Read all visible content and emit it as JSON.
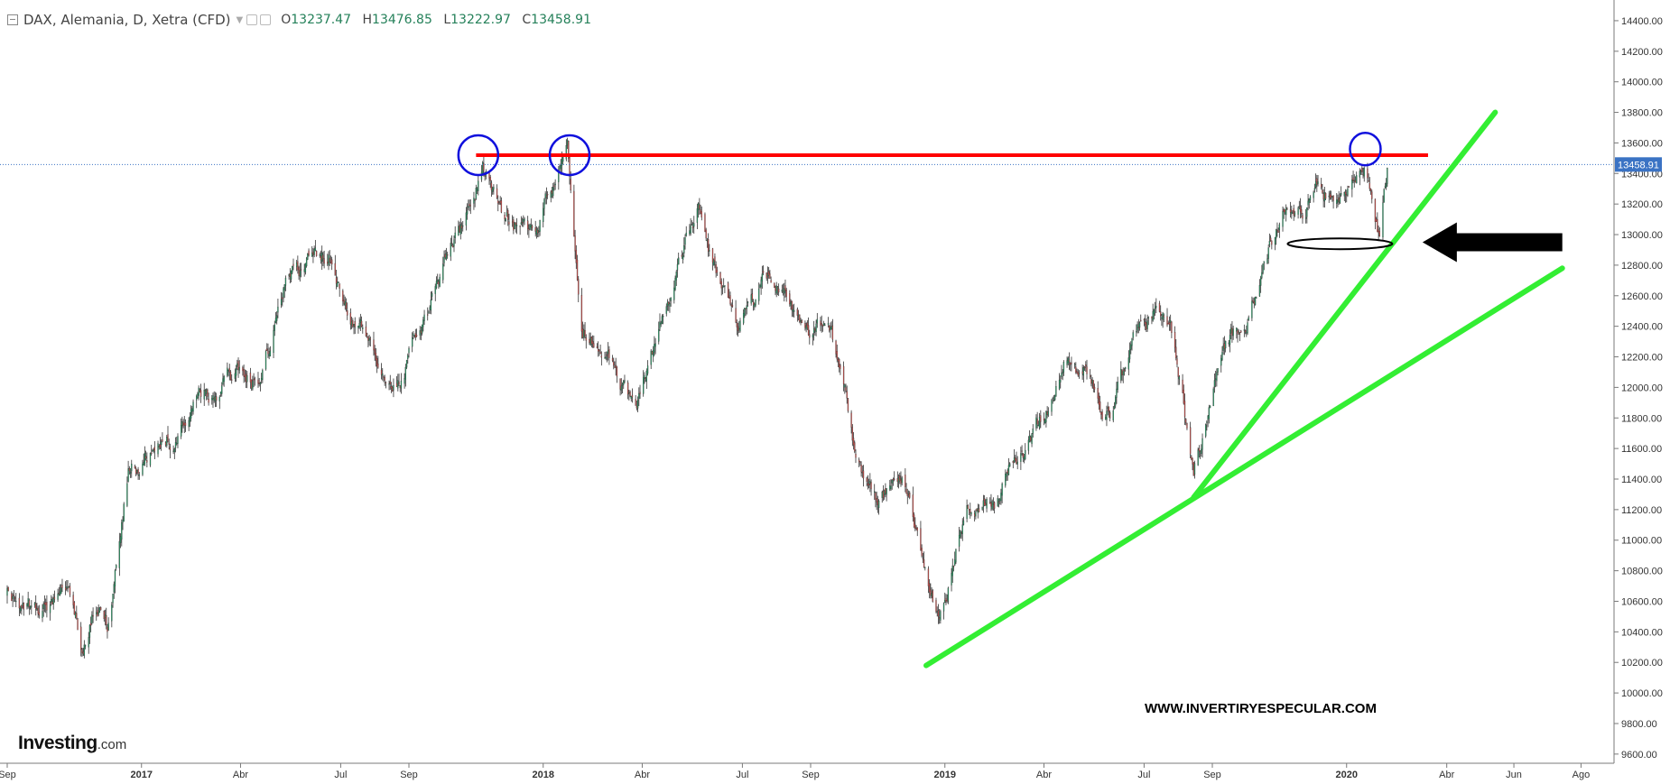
{
  "header": {
    "symbol": "DAX, Alemania, D, Xetra (CFD)",
    "open_label": "O",
    "open_value": "13237.47",
    "high_label": "H",
    "high_value": "13476.85",
    "low_label": "L",
    "low_value": "13222.97",
    "close_label": "C",
    "close_value": "13458.91"
  },
  "logo": {
    "name": "Investing",
    "suffix": ".com"
  },
  "watermark": "WWW.INVERTIRYESPECULAR.COM",
  "colors": {
    "up": "#26a269",
    "down": "#d9534f",
    "resistance": "#ff0000",
    "trend": "#33ee33",
    "circle": "#1010dd",
    "arrow": "#000000",
    "price_tag": "#3b73c4"
  },
  "chart_data": {
    "type": "candlestick",
    "title": "DAX, Alemania, D, Xetra (CFD)",
    "ylim": [
      9540,
      14500
    ],
    "y_ticks": [
      9600,
      9800,
      10000,
      10200,
      10400,
      10600,
      10800,
      11000,
      11200,
      11400,
      11600,
      11800,
      12000,
      12200,
      12400,
      12600,
      12800,
      13000,
      13200,
      13400,
      13600,
      13800,
      14000,
      14200,
      14400
    ],
    "y_tick_labels": [
      "9600.00",
      "9800.00",
      "10000.00",
      "10200.00",
      "10400.00",
      "10600.00",
      "10800.00",
      "11000.00",
      "11200.00",
      "11400.00",
      "11600.00",
      "11800.00",
      "12000.00",
      "12200.00",
      "12400.00",
      "12600.00",
      "12800.00",
      "13000.00",
      "13200.00",
      "13400.00",
      "13600.00",
      "13800.00",
      "14000.00",
      "14200.00",
      "14400.00"
    ],
    "xlim": [
      "2016-09-01",
      "2020-08-31"
    ],
    "x_ticks": [
      {
        "date": "2016-09-01",
        "label": "Sep",
        "bold": false
      },
      {
        "date": "2017-01-01",
        "label": "2017",
        "bold": true
      },
      {
        "date": "2017-04-01",
        "label": "Abr",
        "bold": false
      },
      {
        "date": "2017-07-01",
        "label": "Jul",
        "bold": false
      },
      {
        "date": "2017-09-01",
        "label": "Sep",
        "bold": false
      },
      {
        "date": "2018-01-01",
        "label": "2018",
        "bold": true
      },
      {
        "date": "2018-04-01",
        "label": "Abr",
        "bold": false
      },
      {
        "date": "2018-07-01",
        "label": "Jul",
        "bold": false
      },
      {
        "date": "2018-09-01",
        "label": "Sep",
        "bold": false
      },
      {
        "date": "2019-01-01",
        "label": "2019",
        "bold": true
      },
      {
        "date": "2019-04-01",
        "label": "Abr",
        "bold": false
      },
      {
        "date": "2019-07-01",
        "label": "Jul",
        "bold": false
      },
      {
        "date": "2019-09-01",
        "label": "Sep",
        "bold": false
      },
      {
        "date": "2020-01-01",
        "label": "2020",
        "bold": true
      },
      {
        "date": "2020-04-01",
        "label": "Abr",
        "bold": false
      },
      {
        "date": "2020-06-01",
        "label": "Jun",
        "bold": false
      },
      {
        "date": "2020-08-01",
        "label": "Ago",
        "bold": false
      }
    ],
    "price_path": [
      [
        "2016-09-01",
        10650
      ],
      [
        "2016-10-01",
        10500
      ],
      [
        "2016-10-25",
        10750
      ],
      [
        "2016-11-09",
        10250
      ],
      [
        "2016-11-20",
        10600
      ],
      [
        "2016-12-01",
        10450
      ],
      [
        "2016-12-20",
        11450
      ],
      [
        "2017-01-10",
        11600
      ],
      [
        "2017-02-01",
        11700
      ],
      [
        "2017-02-20",
        11850
      ],
      [
        "2017-03-20",
        12050
      ],
      [
        "2017-04-18",
        12050
      ],
      [
        "2017-05-10",
        12650
      ],
      [
        "2017-06-20",
        12850
      ],
      [
        "2017-07-10",
        12500
      ],
      [
        "2017-07-25",
        12300
      ],
      [
        "2017-08-25",
        12100
      ],
      [
        "2017-09-25",
        12600
      ],
      [
        "2017-10-20",
        13050
      ],
      [
        "2017-11-07",
        13500
      ],
      [
        "2017-11-25",
        13100
      ],
      [
        "2017-12-10",
        13050
      ],
      [
        "2017-12-25",
        13000
      ],
      [
        "2018-01-23",
        13550
      ],
      [
        "2018-02-05",
        12400
      ],
      [
        "2018-03-01",
        12250
      ],
      [
        "2018-03-26",
        11800
      ],
      [
        "2018-04-20",
        12500
      ],
      [
        "2018-05-22",
        13150
      ],
      [
        "2018-06-25",
        12300
      ],
      [
        "2018-07-20",
        12600
      ],
      [
        "2018-08-05",
        12700
      ],
      [
        "2018-08-25",
        12350
      ],
      [
        "2018-09-20",
        12400
      ],
      [
        "2018-10-10",
        11600
      ],
      [
        "2018-10-30",
        11300
      ],
      [
        "2018-11-25",
        11400
      ],
      [
        "2018-12-27",
        10450
      ],
      [
        "2019-01-20",
        11200
      ],
      [
        "2019-02-15",
        11300
      ],
      [
        "2019-03-20",
        11600
      ],
      [
        "2019-04-20",
        12150
      ],
      [
        "2019-05-10",
        12100
      ],
      [
        "2019-06-01",
        11800
      ],
      [
        "2019-06-25",
        12300
      ],
      [
        "2019-07-10",
        12450
      ],
      [
        "2019-07-25",
        12400
      ],
      [
        "2019-08-15",
        11500
      ],
      [
        "2019-09-10",
        12250
      ],
      [
        "2019-09-30",
        12400
      ],
      [
        "2019-10-15",
        12700
      ],
      [
        "2019-11-05",
        13200
      ],
      [
        "2019-11-30",
        13250
      ],
      [
        "2019-12-15",
        13300
      ],
      [
        "2020-01-17",
        13550
      ],
      [
        "2020-01-31",
        13000
      ],
      [
        "2020-02-08",
        13458.91
      ]
    ],
    "last_price": "13458.91",
    "annotations": {
      "resistance": {
        "start": "2017-11-01",
        "end": "2020-03-15",
        "value": 13520
      },
      "uptrend_long": {
        "start": [
          "2018-12-15",
          10180
        ],
        "end": [
          "2020-07-15",
          12780
        ]
      },
      "uptrend_short": {
        "start": [
          "2019-08-15",
          11280
        ],
        "end": [
          "2020-05-15",
          13800
        ]
      },
      "circles": [
        {
          "date": "2017-11-03",
          "value": 13520
        },
        {
          "date": "2018-01-25",
          "value": 13520
        },
        {
          "date": "2020-01-18",
          "value": 13560
        }
      ],
      "ellipse": {
        "date": "2019-12-26",
        "value": 12940
      },
      "arrow": {
        "tip": [
          "2020-03-10",
          12950
        ],
        "tail_end": "2020-07-15"
      }
    }
  }
}
